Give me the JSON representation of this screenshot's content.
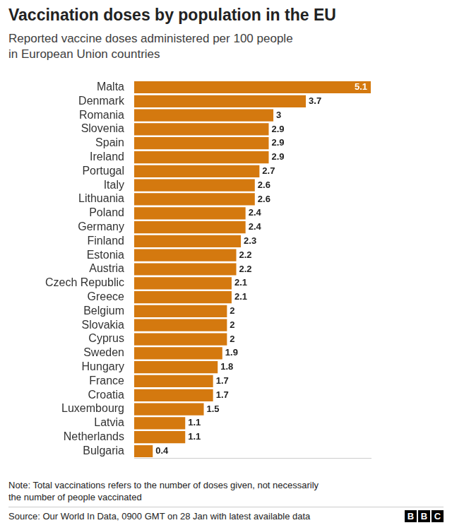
{
  "chart_data": {
    "type": "bar",
    "orientation": "horizontal",
    "title": "Vaccination doses by population in the EU",
    "subtitle": [
      "Reported vaccine doses administered per 100 people",
      "in European Union countries"
    ],
    "note": [
      "Note: Total vaccinations refers to the number of doses given, not necessarily",
      "the number of people vaccinated"
    ],
    "source": "Source: Our World In Data, 0900 GMT on 28 Jan with latest available data",
    "logo": "BBC",
    "categories": [
      "Malta",
      "Denmark",
      "Romania",
      "Slovenia",
      "Spain",
      "Ireland",
      "Portugal",
      "Italy",
      "Lithuania",
      "Poland",
      "Germany",
      "Finland",
      "Estonia",
      "Austria",
      "Czech Republic",
      "Greece",
      "Belgium",
      "Slovakia",
      "Cyprus",
      "Sweden",
      "Hungary",
      "France",
      "Croatia",
      "Luxembourg",
      "Latvia",
      "Netherlands",
      "Bulgaria"
    ],
    "values": [
      5.1,
      3.7,
      3,
      2.9,
      2.9,
      2.9,
      2.7,
      2.6,
      2.6,
      2.4,
      2.4,
      2.3,
      2.2,
      2.2,
      2.1,
      2.1,
      2,
      2,
      2,
      1.9,
      1.8,
      1.7,
      1.7,
      1.5,
      1.1,
      1.1,
      0.4
    ],
    "color": "#d4790f",
    "xlim": [
      0,
      5.1
    ],
    "xticks": [],
    "grid": false,
    "data_labels": true,
    "tick_labels": "y"
  }
}
